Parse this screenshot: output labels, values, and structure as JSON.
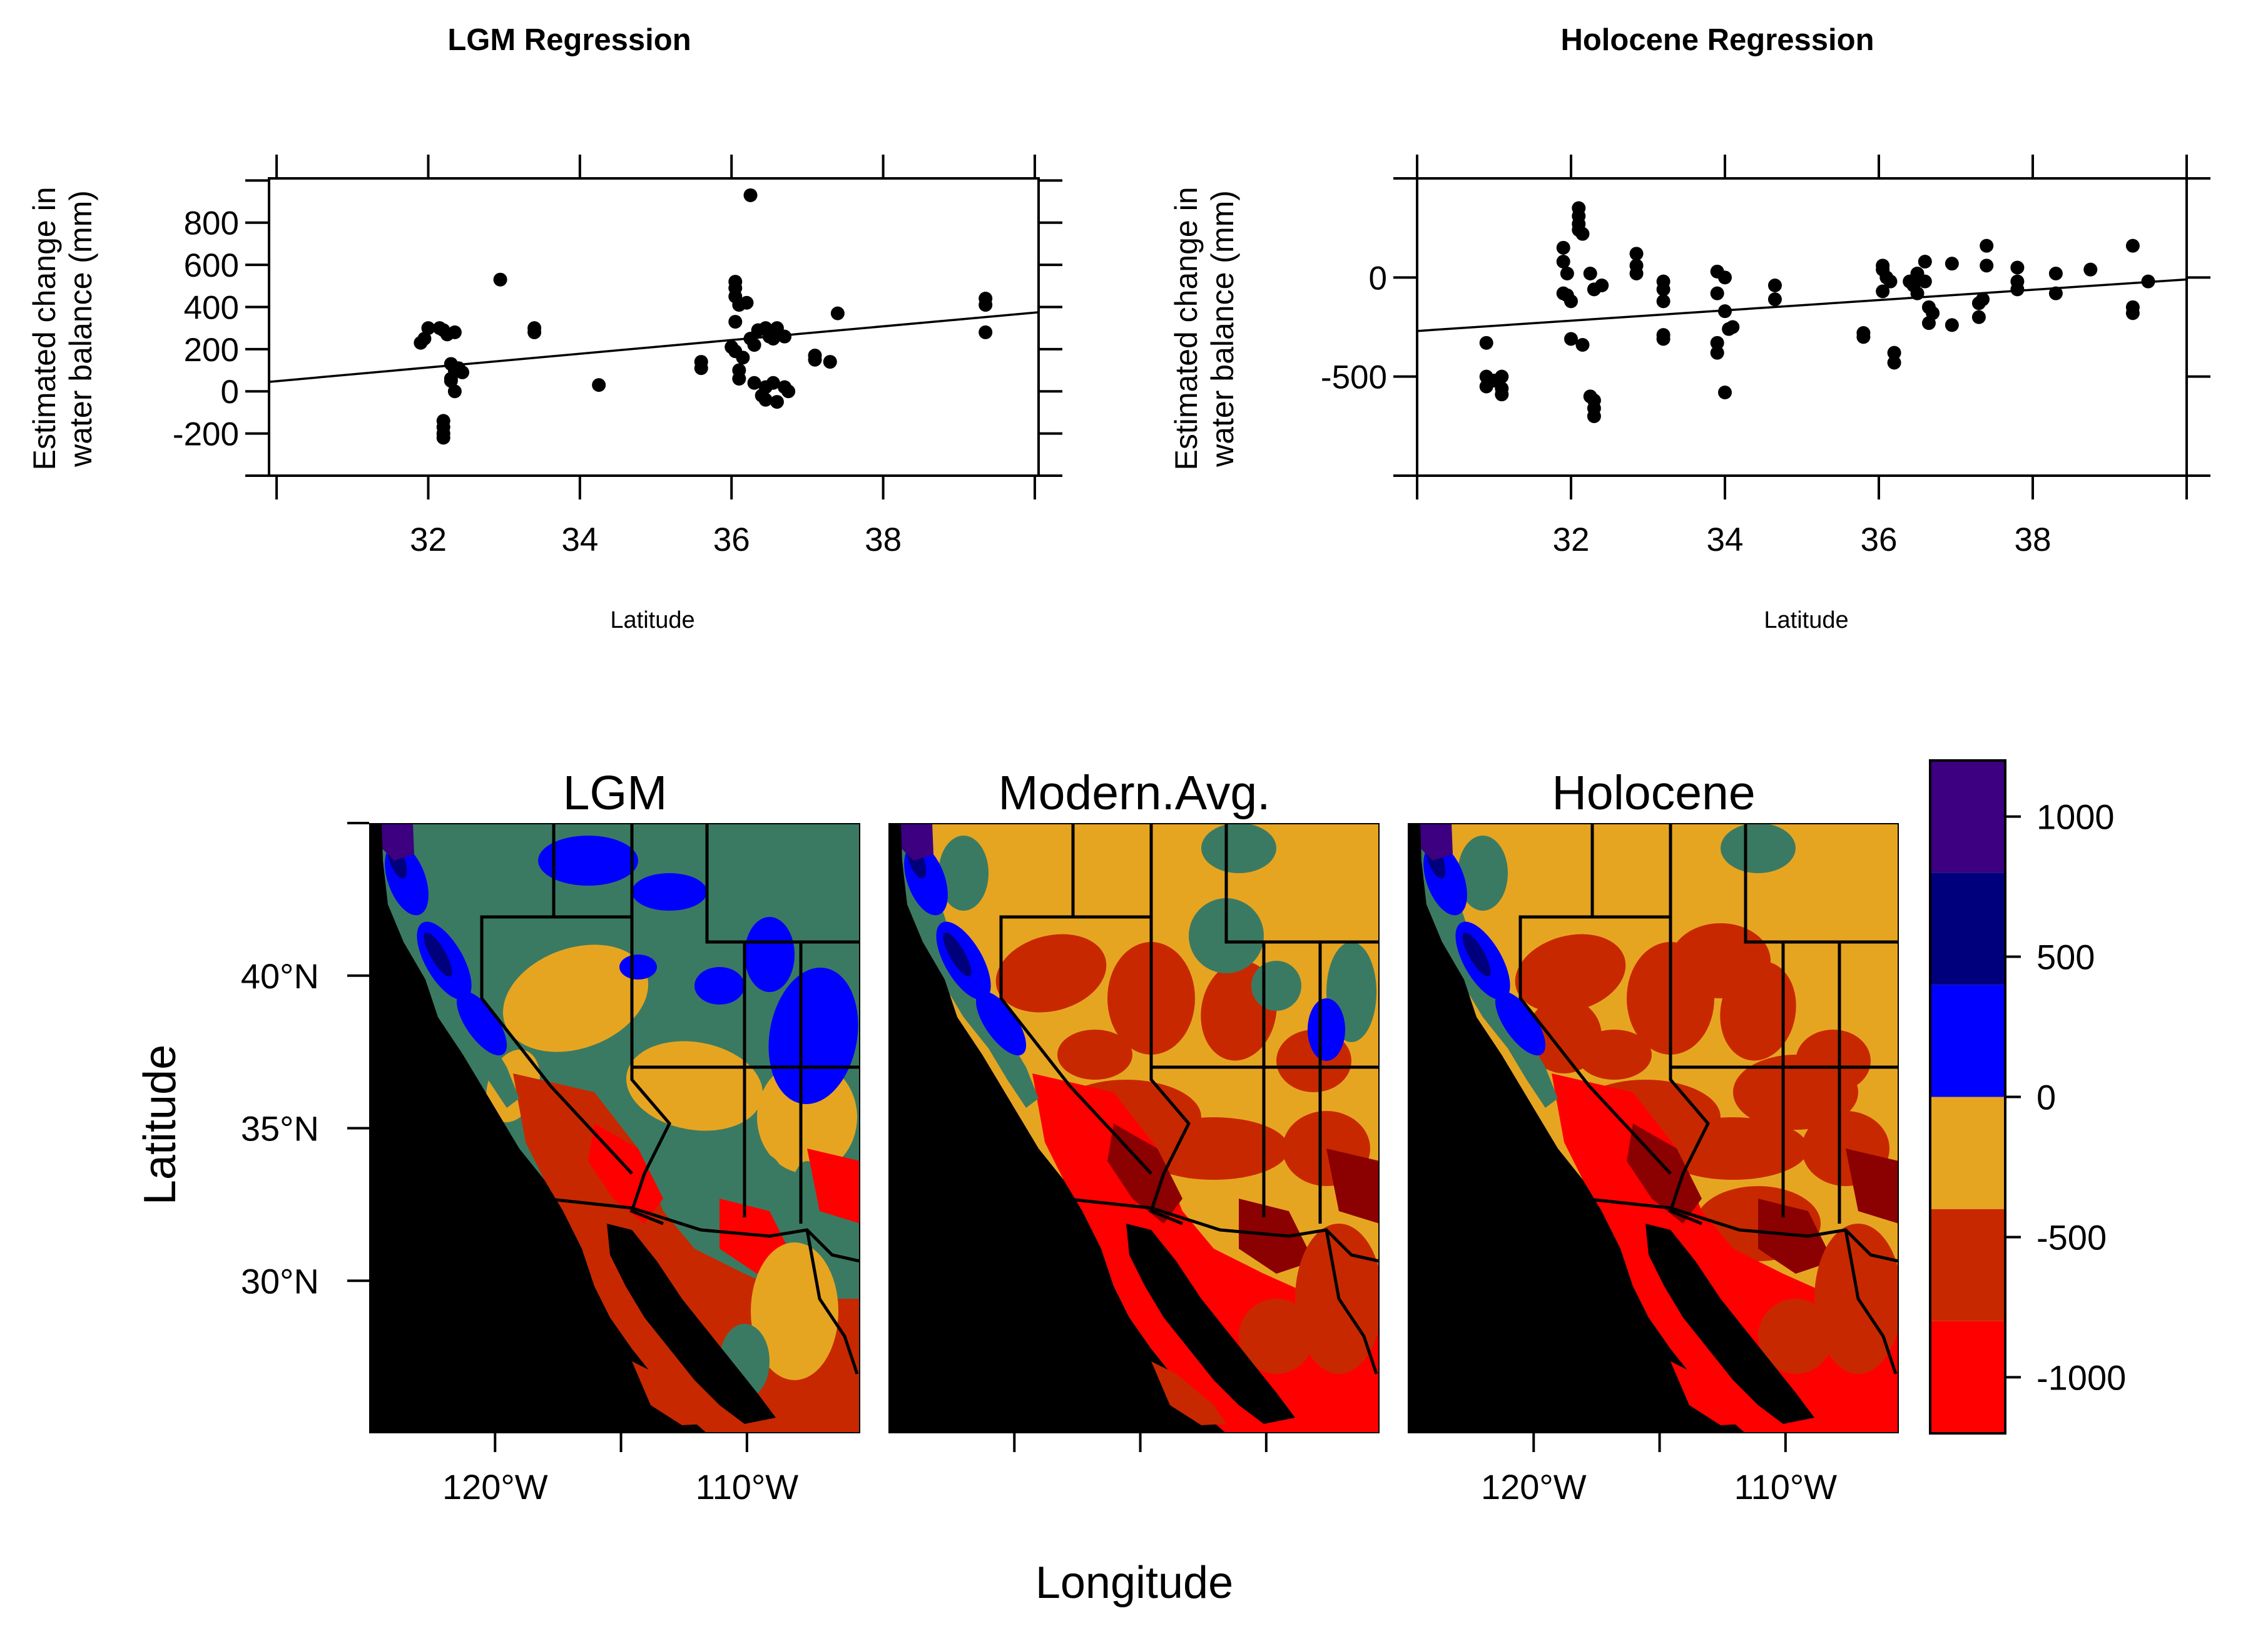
{
  "chart_data": [
    {
      "type": "scatter",
      "title": "LGM Regression",
      "xlabel": "Latitude",
      "ylabel": [
        "Estimated change in",
        "water balance (mm)"
      ],
      "xlim": [
        29.9,
        40.05
      ],
      "ylim": [
        -400,
        1010
      ],
      "xticks": [
        32,
        34,
        36,
        38
      ],
      "yticks": [
        -200,
        0,
        200,
        400,
        600,
        800
      ],
      "grid": false,
      "regression": {
        "x": [
          29.9,
          40.05
        ],
        "y": [
          45,
          375
        ]
      },
      "points": [
        [
          31.9,
          230
        ],
        [
          32.0,
          300
        ],
        [
          31.95,
          250
        ],
        [
          32.15,
          300
        ],
        [
          32.2,
          290
        ],
        [
          32.25,
          270
        ],
        [
          32.35,
          280
        ],
        [
          32.2,
          -140
        ],
        [
          32.2,
          -170
        ],
        [
          32.2,
          -200
        ],
        [
          32.2,
          -220
        ],
        [
          32.3,
          130
        ],
        [
          32.35,
          100
        ],
        [
          32.4,
          110
        ],
        [
          32.3,
          60
        ],
        [
          32.3,
          50
        ],
        [
          32.35,
          0
        ],
        [
          32.45,
          90
        ],
        [
          32.95,
          530
        ],
        [
          33.4,
          300
        ],
        [
          33.4,
          280
        ],
        [
          34.25,
          30
        ],
        [
          35.6,
          140
        ],
        [
          35.6,
          110
        ],
        [
          36.0,
          210
        ],
        [
          36.05,
          190
        ],
        [
          36.05,
          330
        ],
        [
          36.05,
          520
        ],
        [
          36.05,
          490
        ],
        [
          36.05,
          450
        ],
        [
          36.1,
          410
        ],
        [
          36.1,
          100
        ],
        [
          36.1,
          60
        ],
        [
          36.15,
          160
        ],
        [
          36.2,
          420
        ],
        [
          36.25,
          930
        ],
        [
          36.25,
          250
        ],
        [
          36.3,
          220
        ],
        [
          36.3,
          40
        ],
        [
          36.35,
          290
        ],
        [
          36.45,
          300
        ],
        [
          36.4,
          -20
        ],
        [
          36.45,
          20
        ],
        [
          36.45,
          -40
        ],
        [
          36.5,
          260
        ],
        [
          36.55,
          250
        ],
        [
          36.55,
          40
        ],
        [
          36.6,
          -50
        ],
        [
          36.6,
          300
        ],
        [
          36.7,
          20
        ],
        [
          36.7,
          260
        ],
        [
          36.75,
          0
        ],
        [
          37.1,
          170
        ],
        [
          37.1,
          150
        ],
        [
          37.3,
          140
        ],
        [
          37.4,
          370
        ],
        [
          39.35,
          440
        ],
        [
          39.35,
          410
        ],
        [
          39.35,
          280
        ]
      ]
    },
    {
      "type": "scatter",
      "title": "Holocene Regression",
      "xlabel": "Latitude",
      "ylabel": [
        "Estimated change in",
        "water balance (mm)"
      ],
      "xlim": [
        30.0,
        40.0
      ],
      "ylim": [
        -1000,
        500
      ],
      "xticks": [
        32,
        34,
        36,
        38
      ],
      "yticks": [
        -500,
        0
      ],
      "grid": false,
      "regression": {
        "x": [
          30.0,
          40.0
        ],
        "y": [
          -270,
          -10
        ]
      },
      "points": [
        [
          30.9,
          -330
        ],
        [
          30.9,
          -500
        ],
        [
          30.9,
          -550
        ],
        [
          31.0,
          -520
        ],
        [
          31.1,
          -560
        ],
        [
          31.1,
          -590
        ],
        [
          31.1,
          -500
        ],
        [
          31.9,
          150
        ],
        [
          31.9,
          80
        ],
        [
          31.9,
          -80
        ],
        [
          31.95,
          20
        ],
        [
          31.95,
          -90
        ],
        [
          32.0,
          -310
        ],
        [
          32.0,
          -120
        ],
        [
          32.1,
          350
        ],
        [
          32.1,
          310
        ],
        [
          32.1,
          270
        ],
        [
          32.1,
          240
        ],
        [
          32.15,
          220
        ],
        [
          32.15,
          -340
        ],
        [
          32.25,
          20
        ],
        [
          32.25,
          -600
        ],
        [
          32.3,
          -620
        ],
        [
          32.3,
          -660
        ],
        [
          32.3,
          -700
        ],
        [
          32.3,
          -60
        ],
        [
          32.4,
          -40
        ],
        [
          32.85,
          120
        ],
        [
          32.85,
          60
        ],
        [
          32.85,
          20
        ],
        [
          33.2,
          -20
        ],
        [
          33.2,
          -60
        ],
        [
          33.2,
          -120
        ],
        [
          33.2,
          -290
        ],
        [
          33.2,
          -310
        ],
        [
          33.9,
          30
        ],
        [
          33.9,
          -80
        ],
        [
          33.9,
          -330
        ],
        [
          33.9,
          -380
        ],
        [
          34.0,
          0
        ],
        [
          34.0,
          -170
        ],
        [
          34.0,
          -580
        ],
        [
          34.05,
          -260
        ],
        [
          34.1,
          -250
        ],
        [
          34.65,
          -40
        ],
        [
          34.65,
          -110
        ],
        [
          35.8,
          -280
        ],
        [
          35.8,
          -300
        ],
        [
          36.05,
          60
        ],
        [
          36.05,
          40
        ],
        [
          36.05,
          -70
        ],
        [
          36.1,
          0
        ],
        [
          36.15,
          -20
        ],
        [
          36.2,
          -380
        ],
        [
          36.2,
          -430
        ],
        [
          36.4,
          -20
        ],
        [
          36.45,
          -40
        ],
        [
          36.5,
          -80
        ],
        [
          36.5,
          20
        ],
        [
          36.6,
          80
        ],
        [
          36.6,
          -20
        ],
        [
          36.65,
          -150
        ],
        [
          36.65,
          -230
        ],
        [
          36.7,
          -180
        ],
        [
          36.95,
          70
        ],
        [
          36.95,
          -240
        ],
        [
          37.3,
          -200
        ],
        [
          37.3,
          -130
        ],
        [
          37.35,
          -110
        ],
        [
          37.4,
          60
        ],
        [
          37.4,
          160
        ],
        [
          37.8,
          50
        ],
        [
          37.8,
          -20
        ],
        [
          37.8,
          -60
        ],
        [
          38.3,
          20
        ],
        [
          38.3,
          -80
        ],
        [
          38.75,
          40
        ],
        [
          39.3,
          160
        ],
        [
          39.3,
          -150
        ],
        [
          39.3,
          -180
        ],
        [
          39.5,
          -20
        ]
      ]
    },
    {
      "type": "heatmap",
      "panels": [
        "LGM",
        "Modern.Avg.",
        "Holocene"
      ],
      "xlabel": "Longitude",
      "ylabel": "Latitude",
      "xlim": [
        -125,
        -105.5
      ],
      "ylim": [
        25,
        45
      ],
      "xticks": [
        -120,
        -110
      ],
      "xtick_labels": [
        "120°W",
        "110°W"
      ],
      "yticks": [
        30,
        35,
        40
      ],
      "ytick_labels": [
        "30°N",
        "35°N",
        "40°N"
      ],
      "colorbar": {
        "breaks": [
          -1200,
          -800,
          -400,
          0,
          400,
          800,
          1200
        ],
        "colors": [
          "#ff0000",
          "#c82800",
          "#e6a521",
          "#0000ff",
          "#00007d",
          "#3d0080"
        ],
        "ticks": [
          -1000,
          -500,
          0,
          500,
          1000
        ],
        "tick_labels": [
          "-1000",
          "-500",
          "0",
          "500",
          "1000"
        ]
      },
      "other_colors": {
        "ocean": "#000000",
        "mid_band": "#3b7a62",
        "deep_red": "#8b0000"
      }
    }
  ]
}
